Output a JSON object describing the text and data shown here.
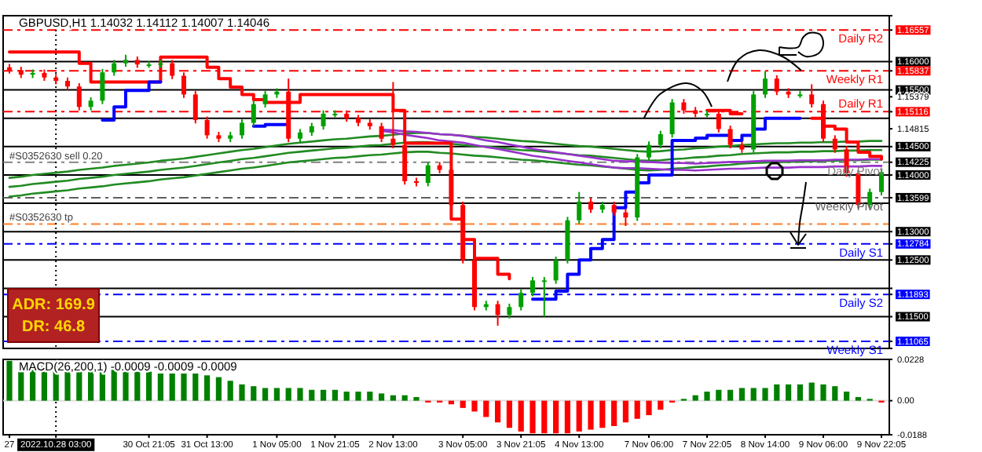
{
  "chart_data": [
    {
      "type": "candlestick",
      "title": "GBPUSD,H1  1.14032 1.14112 1.14007 1.14046",
      "categories": [
        "27",
        null,
        null,
        null,
        "2022.10.28 03:00",
        null,
        null,
        null,
        null,
        null,
        null,
        null,
        "30 Oct 21:05",
        null,
        null,
        null,
        null,
        "31 Oct 13:00",
        null,
        null,
        null,
        null,
        null,
        "1 Nov 05:00",
        null,
        null,
        null,
        null,
        "1 Nov 21:05",
        null,
        null,
        null,
        null,
        "2 Nov 13:00",
        null,
        null,
        null,
        null,
        null,
        "3 Nov 05:00",
        null,
        null,
        null,
        null,
        "3 Nov 21:05",
        null,
        null,
        null,
        null,
        "4 Nov 13:00",
        null,
        null,
        null,
        null,
        null,
        "7 Nov 06:00",
        null,
        null,
        null,
        null,
        "7 Nov 22:05",
        null,
        null,
        null,
        null,
        "8 Nov 14:00",
        null,
        null,
        null,
        null,
        "9 Nov 06:00",
        null,
        null,
        null,
        null,
        "9 Nov 22:05"
      ],
      "ohlc": [
        [
          1.159,
          1.1596,
          1.1579,
          1.1585
        ],
        [
          1.1585,
          1.1591,
          1.1571,
          1.1577
        ],
        [
          1.1577,
          1.1586,
          1.1571,
          1.158
        ],
        [
          1.158,
          1.1586,
          1.1566,
          1.1572
        ],
        [
          1.1572,
          1.1578,
          1.156,
          1.1566
        ],
        [
          1.1566,
          1.1572,
          1.155,
          1.1556
        ],
        [
          1.1556,
          1.1562,
          1.1514,
          1.152
        ],
        [
          1.152,
          1.1537,
          1.1514,
          1.1531
        ],
        [
          1.1531,
          1.1587,
          1.1525,
          1.1581
        ],
        [
          1.1581,
          1.1603,
          1.1575,
          1.1597
        ],
        [
          1.1597,
          1.1612,
          1.1591,
          1.1603
        ],
        [
          1.1603,
          1.1609,
          1.1589,
          1.1595
        ],
        [
          1.1595,
          1.1601,
          1.1589,
          1.1595
        ],
        [
          1.1595,
          1.1603,
          1.1589,
          1.1597
        ],
        [
          1.1597,
          1.1603,
          1.1569,
          1.1575
        ],
        [
          1.1575,
          1.1581,
          1.1536,
          1.1542
        ],
        [
          1.1542,
          1.1548,
          1.1491,
          1.1497
        ],
        [
          1.1497,
          1.1503,
          1.1464,
          1.147
        ],
        [
          1.147,
          1.1476,
          1.1458,
          1.1464
        ],
        [
          1.1464,
          1.1476,
          1.1458,
          1.147
        ],
        [
          1.147,
          1.1498,
          1.1464,
          1.1492
        ],
        [
          1.1492,
          1.1531,
          1.1486,
          1.1525
        ],
        [
          1.1525,
          1.1548,
          1.1519,
          1.1542
        ],
        [
          1.1542,
          1.1553,
          1.1536,
          1.1547
        ],
        [
          1.1547,
          1.157,
          1.1458,
          1.1464
        ],
        [
          1.1464,
          1.1481,
          1.1458,
          1.1475
        ],
        [
          1.1475,
          1.1492,
          1.1469,
          1.1486
        ],
        [
          1.1486,
          1.1514,
          1.148,
          1.1508
        ],
        [
          1.1508,
          1.1514,
          1.1502,
          1.1508
        ],
        [
          1.1508,
          1.1514,
          1.1494,
          1.15
        ],
        [
          1.15,
          1.1506,
          1.1486,
          1.1492
        ],
        [
          1.1492,
          1.1498,
          1.148,
          1.1486
        ],
        [
          1.1486,
          1.1492,
          1.1458,
          1.1464
        ],
        [
          1.1464,
          1.1564,
          1.1447,
          1.1453
        ],
        [
          1.1453,
          1.1459,
          1.1383,
          1.1389
        ],
        [
          1.1389,
          1.1395,
          1.138,
          1.1386
        ],
        [
          1.1386,
          1.1423,
          1.138,
          1.1417
        ],
        [
          1.1417,
          1.1423,
          1.1403,
          1.1409
        ],
        [
          1.1409,
          1.1415,
          1.1341,
          1.1347
        ],
        [
          1.1347,
          1.1353,
          1.1244,
          1.125
        ],
        [
          1.125,
          1.1256,
          1.1161,
          1.1167
        ],
        [
          1.1167,
          1.1178,
          1.1161,
          1.1172
        ],
        [
          1.1172,
          1.1178,
          1.1134,
          1.1153
        ],
        [
          1.1153,
          1.1173,
          1.1147,
          1.1167
        ],
        [
          1.1167,
          1.1198,
          1.1161,
          1.1192
        ],
        [
          1.1192,
          1.122,
          1.1186,
          1.1214
        ],
        [
          1.1214,
          1.122,
          1.115,
          1.1214
        ],
        [
          1.1214,
          1.1256,
          1.1208,
          1.125
        ],
        [
          1.125,
          1.1326,
          1.1244,
          1.132
        ],
        [
          1.132,
          1.137,
          1.1314,
          1.1353
        ],
        [
          1.1353,
          1.1359,
          1.1333,
          1.1339
        ],
        [
          1.1339,
          1.1353,
          1.1333,
          1.1347
        ],
        [
          1.1347,
          1.1353,
          1.1328,
          1.1334
        ],
        [
          1.1334,
          1.134,
          1.131,
          1.1325
        ],
        [
          1.1325,
          1.1437,
          1.1319,
          1.1431
        ],
        [
          1.1431,
          1.1459,
          1.1425,
          1.1453
        ],
        [
          1.1453,
          1.1478,
          1.1447,
          1.1472
        ],
        [
          1.1472,
          1.1534,
          1.1466,
          1.1528
        ],
        [
          1.1528,
          1.1534,
          1.1508,
          1.1514
        ],
        [
          1.1514,
          1.152,
          1.1502,
          1.1508
        ],
        [
          1.1508,
          1.1514,
          1.1502,
          1.1508
        ],
        [
          1.1508,
          1.1514,
          1.1475,
          1.1481
        ],
        [
          1.1481,
          1.1487,
          1.1447,
          1.1453
        ],
        [
          1.1453,
          1.1459,
          1.1439,
          1.1445
        ],
        [
          1.1445,
          1.1548,
          1.1439,
          1.1542
        ],
        [
          1.1542,
          1.1583,
          1.1536,
          1.157
        ],
        [
          1.157,
          1.1576,
          1.1541,
          1.1547
        ],
        [
          1.1547,
          1.1553,
          1.1536,
          1.1542
        ],
        [
          1.1542,
          1.1548,
          1.1536,
          1.1542
        ],
        [
          1.1542,
          1.156,
          1.1519,
          1.1525
        ],
        [
          1.1525,
          1.1531,
          1.1458,
          1.1464
        ],
        [
          1.1464,
          1.147,
          1.1439,
          1.1445
        ],
        [
          1.1445,
          1.1451,
          1.1397,
          1.1403
        ],
        [
          1.1403,
          1.1409,
          1.1341,
          1.1347
        ],
        [
          1.1347,
          1.1376,
          1.1341,
          1.137
        ],
        [
          1.137,
          1.1411,
          1.1364,
          1.1405
        ]
      ],
      "colors": [
        "#ff0000",
        "#ff0000",
        "#00a000",
        "#ff0000",
        "#ff0000",
        "#ff0000",
        "#ff0000",
        "#00a000",
        "#00a000",
        "#00a000",
        "#00a000",
        "#ff0000",
        "#00a000",
        "#00a000",
        "#ff0000",
        "#ff0000",
        "#ff0000",
        "#ff0000",
        "#ff0000",
        "#00a000",
        "#00a000",
        "#00a000",
        "#00a000",
        "#00a000",
        "#ff0000",
        "#00a000",
        "#00a000",
        "#00a000",
        "#00a000",
        "#ff0000",
        "#ff0000",
        "#ff0000",
        "#ff0000",
        "#ff0000",
        "#ff0000",
        "#ff0000",
        "#00a000",
        "#ff0000",
        "#ff0000",
        "#ff0000",
        "#ff0000",
        "#00a000",
        "#ff0000",
        "#00a000",
        "#00a000",
        "#00a000",
        "#00a000",
        "#00a000",
        "#00a000",
        "#00a000",
        "#ff0000",
        "#00a000",
        "#ff0000",
        "#ff0000",
        "#00a000",
        "#00a000",
        "#00a000",
        "#00a000",
        "#ff0000",
        "#ff0000",
        "#00a000",
        "#ff0000",
        "#ff0000",
        "#ff0000",
        "#00a000",
        "#00a000",
        "#ff0000",
        "#ff0000",
        "#00a000",
        "#ff0000",
        "#ff0000",
        "#ff0000",
        "#ff0000",
        "#ff0000",
        "#00a000",
        "#00a000"
      ],
      "series": [
        {
          "type": "line",
          "color": "#228b22",
          "values": [
            1.1395,
            1.1397,
            1.14,
            1.1402,
            1.1404,
            1.1406,
            1.1409,
            1.1411,
            1.1413,
            1.1416,
            1.1418,
            1.142,
            1.1422,
            1.1425,
            1.1427,
            1.1429,
            1.1432,
            1.1435,
            1.1438,
            1.1441,
            1.1444,
            1.1446,
            1.1449,
            1.1452,
            1.1455,
            1.1457,
            1.1459,
            1.1461,
            1.1463,
            1.1464,
            1.1466,
            1.1468,
            1.1469,
            1.1471,
            1.1473,
            1.1474,
            1.1474,
            1.1472,
            1.1471,
            1.1469,
            1.1467,
            1.1466,
            1.1464,
            1.1462,
            1.146,
            1.1459,
            1.1457,
            1.1455,
            1.1453,
            1.1451,
            1.145,
            1.1448,
            1.1446,
            1.1444,
            1.1442,
            1.1441,
            1.1442,
            1.1444,
            1.1445,
            1.1447,
            1.1448,
            1.145,
            1.1451,
            1.1453,
            1.1454,
            1.1455,
            1.1456,
            1.1456,
            1.1457,
            1.1457,
            1.1458,
            1.1458,
            1.1459,
            1.1459,
            1.146,
            1.146
          ]
        },
        {
          "type": "line",
          "color": "#228b22",
          "values": [
            1.1379,
            1.1381,
            1.1384,
            1.1386,
            1.1388,
            1.139,
            1.1393,
            1.1395,
            1.1397,
            1.14,
            1.1402,
            1.1404,
            1.1406,
            1.1409,
            1.1411,
            1.1413,
            1.1416,
            1.1419,
            1.1422,
            1.1425,
            1.1428,
            1.143,
            1.1433,
            1.1436,
            1.1439,
            1.1441,
            1.1443,
            1.1445,
            1.1447,
            1.1448,
            1.145,
            1.1452,
            1.1453,
            1.1455,
            1.1457,
            1.1458,
            1.1458,
            1.1456,
            1.1455,
            1.1453,
            1.1451,
            1.145,
            1.1448,
            1.1446,
            1.1444,
            1.1443,
            1.1441,
            1.1439,
            1.1437,
            1.1435,
            1.1434,
            1.1432,
            1.143,
            1.1428,
            1.1426,
            1.1425,
            1.1426,
            1.1428,
            1.1429,
            1.1431,
            1.1432,
            1.1434,
            1.1435,
            1.1437,
            1.1438,
            1.1439,
            1.144,
            1.144,
            1.1441,
            1.1441,
            1.1442,
            1.1442,
            1.1443,
            1.1443,
            1.1444,
            1.1444
          ]
        },
        {
          "type": "line",
          "color": "#228b22",
          "values": [
            1.1362,
            1.1364,
            1.1367,
            1.1369,
            1.1371,
            1.1373,
            1.1376,
            1.1378,
            1.138,
            1.1383,
            1.1385,
            1.1387,
            1.1389,
            1.1392,
            1.1394,
            1.1396,
            1.1399,
            1.1402,
            1.1405,
            1.1408,
            1.1411,
            1.1413,
            1.1416,
            1.1419,
            1.1422,
            1.1424,
            1.1426,
            1.1428,
            1.143,
            1.1431,
            1.1433,
            1.1435,
            1.1436,
            1.1438,
            1.144,
            1.1441,
            1.1441,
            1.1439,
            1.1438,
            1.1436,
            1.1434,
            1.1433,
            1.1431,
            1.1429,
            1.1427,
            1.1426,
            1.1424,
            1.1422,
            1.142,
            1.1418,
            1.1417,
            1.1415,
            1.1413,
            1.1411,
            1.1409,
            1.1408,
            1.1409,
            1.1411,
            1.1412,
            1.1414,
            1.1415,
            1.1417,
            1.1418,
            1.142,
            1.1421,
            1.1422,
            1.1423,
            1.1423,
            1.1424,
            1.1424,
            1.1425,
            1.1425,
            1.1426,
            1.1426,
            1.1427,
            1.1427
          ]
        },
        {
          "type": "line",
          "color": "#9932cc",
          "values": [
            null,
            null,
            null,
            null,
            null,
            null,
            null,
            null,
            null,
            null,
            null,
            null,
            null,
            null,
            null,
            null,
            null,
            null,
            null,
            null,
            null,
            null,
            null,
            null,
            null,
            null,
            null,
            null,
            null,
            null,
            null,
            null,
            1.148,
            1.1479,
            1.1477,
            1.1476,
            1.1474,
            1.1472,
            1.1471,
            1.1469,
            1.1465,
            1.1461,
            1.1458,
            1.1454,
            1.145,
            1.1446,
            1.1443,
            1.144,
            1.1437,
            1.1434,
            1.1431,
            1.1428,
            1.1425,
            1.1424,
            1.1424,
            1.1423,
            1.1422,
            1.1421,
            1.1421,
            1.142,
            1.1421,
            1.1422,
            1.1423,
            1.1423,
            1.1424,
            1.1425,
            1.1425,
            1.1425,
            1.1426,
            1.1426,
            1.1426,
            1.1427,
            1.1427,
            1.1427,
            1.1428,
            1.1428
          ]
        },
        {
          "type": "line",
          "color": "#9932cc",
          "values": [
            null,
            null,
            null,
            null,
            null,
            null,
            null,
            null,
            null,
            null,
            null,
            null,
            null,
            null,
            null,
            null,
            null,
            null,
            null,
            null,
            null,
            null,
            null,
            null,
            null,
            null,
            null,
            null,
            null,
            null,
            null,
            null,
            1.1478,
            1.1475,
            1.1471,
            1.1468,
            1.1465,
            1.1461,
            1.1459,
            1.1457,
            1.1453,
            1.1449,
            1.1446,
            1.1442,
            1.1438,
            1.1434,
            1.1431,
            1.1428,
            1.1425,
            1.1422,
            1.1419,
            1.1416,
            1.1413,
            1.1412,
            1.1412,
            1.1411,
            1.141,
            1.1409,
            1.1409,
            1.1408,
            1.1409,
            1.141,
            1.1411,
            1.1411,
            1.1412,
            1.1413,
            1.1413,
            1.1413,
            1.1414,
            1.1414,
            1.1414,
            1.1415,
            1.1415,
            1.1415,
            1.1416,
            1.1416
          ]
        },
        {
          "type": "step",
          "color": "#ff0000",
          "values": [
            1.1617,
            1.1617,
            1.1617,
            1.1617,
            1.1617,
            1.1617,
            1.1597,
            1.1564,
            1.1564,
            1.1564,
            1.1564,
            1.1564,
            1.1564,
            1.1608,
            1.1608,
            1.1608,
            1.1608,
            1.159,
            1.157,
            1.1555,
            1.1542,
            1.1533,
            1.1528,
            1.1528,
            1.1528,
            1.1542,
            1.1542,
            1.1542,
            1.1542,
            1.1542,
            1.1542,
            1.1542,
            1.1542,
            1.1514,
            1.1456,
            1.1456,
            1.1456,
            1.1456,
            1.1322,
            1.1286,
            1.1253,
            1.1253,
            1.1225,
            1.1217,
            null,
            null,
            null,
            null,
            null,
            null,
            null,
            null,
            null,
            null,
            null,
            null,
            null,
            null,
            null,
            null,
            1.1514,
            1.1514,
            1.1508,
            1.1508,
            null,
            null,
            null,
            null,
            null,
            1.15,
            1.1486,
            1.1481,
            1.1458,
            1.144,
            1.1433,
            1.1428
          ]
        },
        {
          "type": "step",
          "color": "#0000ff",
          "values": [
            null,
            null,
            null,
            null,
            null,
            null,
            null,
            null,
            1.1497,
            1.152,
            1.1549,
            1.1549,
            1.1564,
            1.1564,
            null,
            null,
            null,
            null,
            null,
            null,
            null,
            1.1486,
            1.1489,
            1.1489,
            1.1489,
            null,
            null,
            null,
            null,
            null,
            null,
            null,
            null,
            null,
            null,
            null,
            null,
            null,
            null,
            null,
            null,
            null,
            null,
            null,
            null,
            1.1181,
            1.1181,
            1.1195,
            1.1225,
            1.125,
            1.127,
            1.1286,
            1.1342,
            1.137,
            1.1386,
            1.14,
            1.14,
            1.1461,
            1.1461,
            1.1465,
            1.147,
            1.147,
            1.1461,
            1.147,
            1.1481,
            1.15,
            1.15,
            1.15,
            1.15,
            null,
            null,
            null,
            null,
            null,
            null,
            null
          ]
        }
      ],
      "ylim": [
        1.1094,
        1.1681
      ],
      "yticks": [
        1.16557,
        {
          "value": 1.16,
          "label": "1.16000"
        },
        1.15837,
        {
          "value": 1.155,
          "label": "1.15500"
        },
        1.15379,
        1.15116,
        1.14815,
        {
          "value": 1.145,
          "label": "1.14500"
        },
        1.14225,
        {
          "value": 1.14,
          "label": "1.14000"
        },
        1.13599,
        {
          "value": 1.13,
          "label": "1.13000"
        },
        1.12784,
        {
          "value": 1.125,
          "label": "1.12500"
        },
        {
          "value": 1.12,
          "label": null
        },
        1.11893,
        {
          "value": 1.115,
          "label": "1.11500"
        },
        1.11065
      ],
      "tick_labels": "y",
      "ref_lines": [
        {
          "axis": "y",
          "value": 1.16,
          "color": "#000000",
          "line_style": "solid"
        },
        {
          "axis": "y",
          "value": 1.155,
          "color": "#000000",
          "line_style": "solid"
        },
        {
          "axis": "y",
          "value": 1.15,
          "color": "#000000",
          "line_style": "solid"
        },
        {
          "axis": "y",
          "value": 1.145,
          "color": "#000000",
          "line_style": "solid"
        },
        {
          "axis": "y",
          "value": 1.14,
          "color": "#000000",
          "line_style": "solid"
        },
        {
          "axis": "y",
          "value": 1.135,
          "color": "#000000",
          "line_style": "solid"
        },
        {
          "axis": "y",
          "value": 1.13,
          "color": "#000000",
          "line_style": "solid"
        },
        {
          "axis": "y",
          "value": 1.125,
          "color": "#000000",
          "line_style": "solid"
        },
        {
          "axis": "y",
          "value": 1.12,
          "color": "#000000",
          "line_style": "solid"
        },
        {
          "axis": "y",
          "value": 1.115,
          "color": "#000000",
          "line_style": "solid"
        },
        {
          "axis": "y",
          "value": 1.16557,
          "label": "Daily R2",
          "color": "#ff0000",
          "line_style": "dashed"
        },
        {
          "axis": "y",
          "value": 1.15837,
          "label": "Weekly R1",
          "color": "#ff0000",
          "line_style": "dashed"
        },
        {
          "axis": "y",
          "value": 1.15116,
          "label": "Daily R1",
          "color": "#ff0000",
          "line_style": "dashed"
        },
        {
          "axis": "y",
          "value": 1.14225,
          "label": "Daily Pivot",
          "color": "#808080",
          "line_style": "dashed"
        },
        {
          "axis": "y",
          "value": 1.13599,
          "label": "Weekly Pivot",
          "color": "#606060",
          "line_style": "dashed"
        },
        {
          "axis": "y",
          "value": 1.13135,
          "color": "#ff7f27",
          "line_style": "dashed"
        },
        {
          "axis": "y",
          "value": 1.12784,
          "label": "Daily S1",
          "color": "#0000ff",
          "line_style": "dashed"
        },
        {
          "axis": "y",
          "value": 1.11893,
          "label": "Daily S2",
          "color": "#0000ff",
          "line_style": "dashed"
        },
        {
          "axis": "y",
          "value": 1.11065,
          "label": "Weekly S1",
          "color": "#0000ff",
          "line_style": "dashed"
        },
        {
          "axis": "x",
          "value": "2022.10.28 03:00",
          "color": "#000000",
          "line_style": "dotted"
        }
      ],
      "annotations": [
        "ADR: 169.9",
        "DR: 46.8",
        {
          "text": "#S0352630 sell 0.20",
          "y": 1.14225
        },
        {
          "text": "#S0352630 tp",
          "y": 1.13135
        }
      ]
    },
    {
      "type": "bar",
      "title": "MACD(26,200,1) -0.0009 -0.0009 -0.0009",
      "categories": [
        "27",
        null,
        null,
        null,
        "2022.10.28 03:00",
        null,
        null,
        null,
        null,
        null,
        null,
        null,
        "30 Oct 21:05",
        null,
        null,
        null,
        null,
        "31 Oct 13:00",
        null,
        null,
        null,
        null,
        null,
        "1 Nov 05:00",
        null,
        null,
        null,
        null,
        "1 Nov 21:05",
        null,
        null,
        null,
        null,
        "2 Nov 13:00",
        null,
        null,
        null,
        null,
        null,
        "3 Nov 05:00",
        null,
        null,
        null,
        null,
        "3 Nov 21:05",
        null,
        null,
        null,
        null,
        "4 Nov 13:00",
        null,
        null,
        null,
        null,
        null,
        "7 Nov 06:00",
        null,
        null,
        null,
        null,
        "7 Nov 22:05",
        null,
        null,
        null,
        null,
        "8 Nov 14:00",
        null,
        null,
        null,
        null,
        "9 Nov 06:00",
        null,
        null,
        null,
        null,
        "9 Nov 22:05"
      ],
      "values": [
        0.022,
        0.021,
        0.02,
        0.02,
        0.019,
        0.019,
        0.018,
        0.018,
        0.018,
        0.017,
        0.017,
        0.016,
        0.016,
        0.015,
        0.015,
        0.015,
        0.015,
        0.014,
        0.013,
        0.011,
        0.009,
        0.008,
        0.007,
        0.007,
        0.007,
        0.007,
        0.006,
        0.006,
        0.006,
        0.005,
        0.005,
        0.005,
        0.004,
        0.003,
        0.003,
        0.002,
        -0.001,
        -0.001,
        -0.002,
        -0.004,
        -0.006,
        -0.009,
        -0.012,
        -0.015,
        -0.017,
        -0.018,
        -0.018,
        -0.018,
        -0.018,
        -0.017,
        -0.016,
        -0.015,
        -0.014,
        -0.012,
        -0.01,
        -0.008,
        -0.005,
        -0.001,
        0.001,
        0.003,
        0.005,
        0.006,
        0.006,
        0.007,
        0.007,
        0.007,
        0.009,
        0.009,
        0.009,
        0.01,
        0.009,
        0.008,
        0.005,
        0.002,
        0.001,
        -0.001
      ],
      "colors": [
        "#008000",
        "#008000",
        "#008000",
        "#008000",
        "#008000",
        "#008000",
        "#008000",
        "#008000",
        "#008000",
        "#008000",
        "#008000",
        "#008000",
        "#008000",
        "#008000",
        "#008000",
        "#008000",
        "#008000",
        "#008000",
        "#008000",
        "#008000",
        "#008000",
        "#008000",
        "#008000",
        "#008000",
        "#008000",
        "#008000",
        "#008000",
        "#008000",
        "#008000",
        "#008000",
        "#008000",
        "#008000",
        "#008000",
        "#008000",
        "#008000",
        "#008000",
        "#ff0000",
        "#ff0000",
        "#ff0000",
        "#ff0000",
        "#ff0000",
        "#ff0000",
        "#ff0000",
        "#ff0000",
        "#ff0000",
        "#ff0000",
        "#ff0000",
        "#ff0000",
        "#ff0000",
        "#ff0000",
        "#ff0000",
        "#ff0000",
        "#ff0000",
        "#ff0000",
        "#ff0000",
        "#ff0000",
        "#ff0000",
        "#ff0000",
        "#008000",
        "#008000",
        "#008000",
        "#008000",
        "#008000",
        "#008000",
        "#008000",
        "#008000",
        "#008000",
        "#008000",
        "#008000",
        "#008000",
        "#008000",
        "#008000",
        "#008000",
        "#008000",
        "#008000",
        "#ff0000"
      ],
      "ylim": [
        -0.0188,
        0.0228
      ],
      "yticks": [
        0.0228,
        {
          "value": 0,
          "label": "0.00"
        },
        -0.0188
      ],
      "ref_lines": [
        {
          "axis": "x",
          "value": "2022.10.28 03:00",
          "color": "#000000",
          "line_style": "dotted"
        }
      ]
    }
  ]
}
